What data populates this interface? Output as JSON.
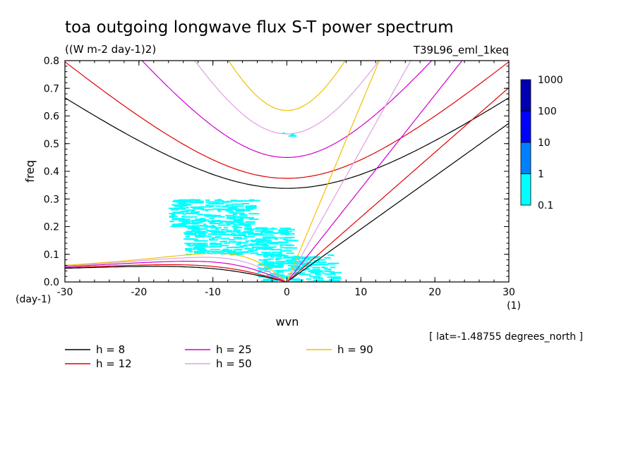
{
  "chart_data": {
    "type": "heatmap",
    "title": "toa outgoing longwave flux S-T power spectrum",
    "subtitle": "((W m-2 day-1)2)",
    "dataset_label": "T39L96_eml_1keq",
    "xlabel": "wvn",
    "ylabel": "freq",
    "xunit": "(1)",
    "yunit": "(day-1)",
    "xlim": [
      -30,
      30
    ],
    "ylim": [
      0,
      0.8
    ],
    "xticks": [
      "-30",
      "-20",
      "-10",
      "0",
      "10",
      "20",
      "30"
    ],
    "yticks": [
      "0.0",
      "0.1",
      "0.2",
      "0.3",
      "0.4",
      "0.5",
      "0.6",
      "0.7",
      "0.8"
    ],
    "footnote": "[ lat=-1.48755 degrees_north ]",
    "colorbar": {
      "levels": [
        "0.1",
        "1",
        "10",
        "100",
        "1000"
      ],
      "colors": [
        "#00ffff",
        "#0080ff",
        "#0000ff",
        "#0000b0",
        "#6000c0"
      ]
    },
    "shaded_regions": [
      {
        "x": [
          -4,
          6
        ],
        "y": [
          0.0,
          0.1
        ],
        "level": "0.1-1",
        "color": "#00ffff"
      },
      {
        "x": [
          -14,
          0
        ],
        "y": [
          0.1,
          0.2
        ],
        "level": "0.1-1",
        "color": "#00ffff"
      },
      {
        "x": [
          -16,
          -5
        ],
        "y": [
          0.2,
          0.3
        ],
        "level": "0.1-1",
        "color": "#00ffff"
      },
      {
        "x": [
          -1,
          1
        ],
        "y": [
          0.53,
          0.54
        ],
        "level": "0.1-1",
        "color": "#00ffff"
      }
    ],
    "series": [
      {
        "name": "h =  8",
        "h": 8,
        "color": "#000000"
      },
      {
        "name": "h = 12",
        "h": 12,
        "color": "#e00000"
      },
      {
        "name": "h = 25",
        "h": 25,
        "color": "#d000d0"
      },
      {
        "name": "h = 50",
        "h": 50,
        "color": "#e0a0e0"
      },
      {
        "name": "h = 90",
        "h": 90,
        "color": "#f0c000"
      }
    ]
  }
}
